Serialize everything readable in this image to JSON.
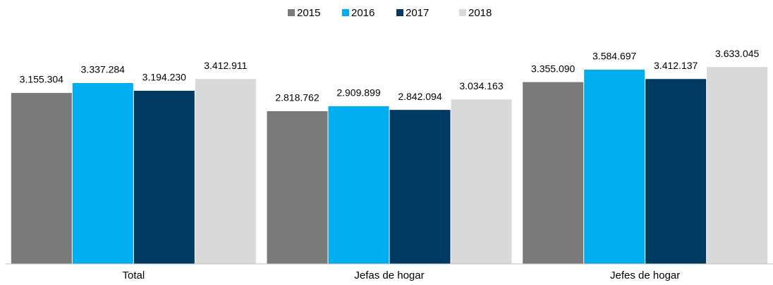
{
  "chart_data": {
    "type": "bar",
    "categories": [
      "Total",
      "Jefas de hogar",
      "Jefes de hogar"
    ],
    "series": [
      {
        "name": "2015",
        "color": "#7a7a7a",
        "values": [
          3155304,
          2818762,
          3355090
        ],
        "value_labels": [
          "3.155.304",
          "2.818.762",
          "3.355.090"
        ]
      },
      {
        "name": "2016",
        "color": "#00adef",
        "values": [
          3337284,
          2909899,
          3584697
        ],
        "value_labels": [
          "3.337.284",
          "2.909.899",
          "3.584.697"
        ]
      },
      {
        "name": "2017",
        "color": "#003a63",
        "values": [
          3194230,
          2842094,
          3412137
        ],
        "value_labels": [
          "3.194.230",
          "2.842.094",
          "3.412.137"
        ]
      },
      {
        "name": "2018",
        "color": "#d9d9d9",
        "values": [
          3412911,
          3034163,
          3633045
        ],
        "value_labels": [
          "3.412.911",
          "3.034.163",
          "3.633.045"
        ]
      }
    ],
    "ylim": [
      0,
      4000000
    ],
    "legend": "top"
  }
}
